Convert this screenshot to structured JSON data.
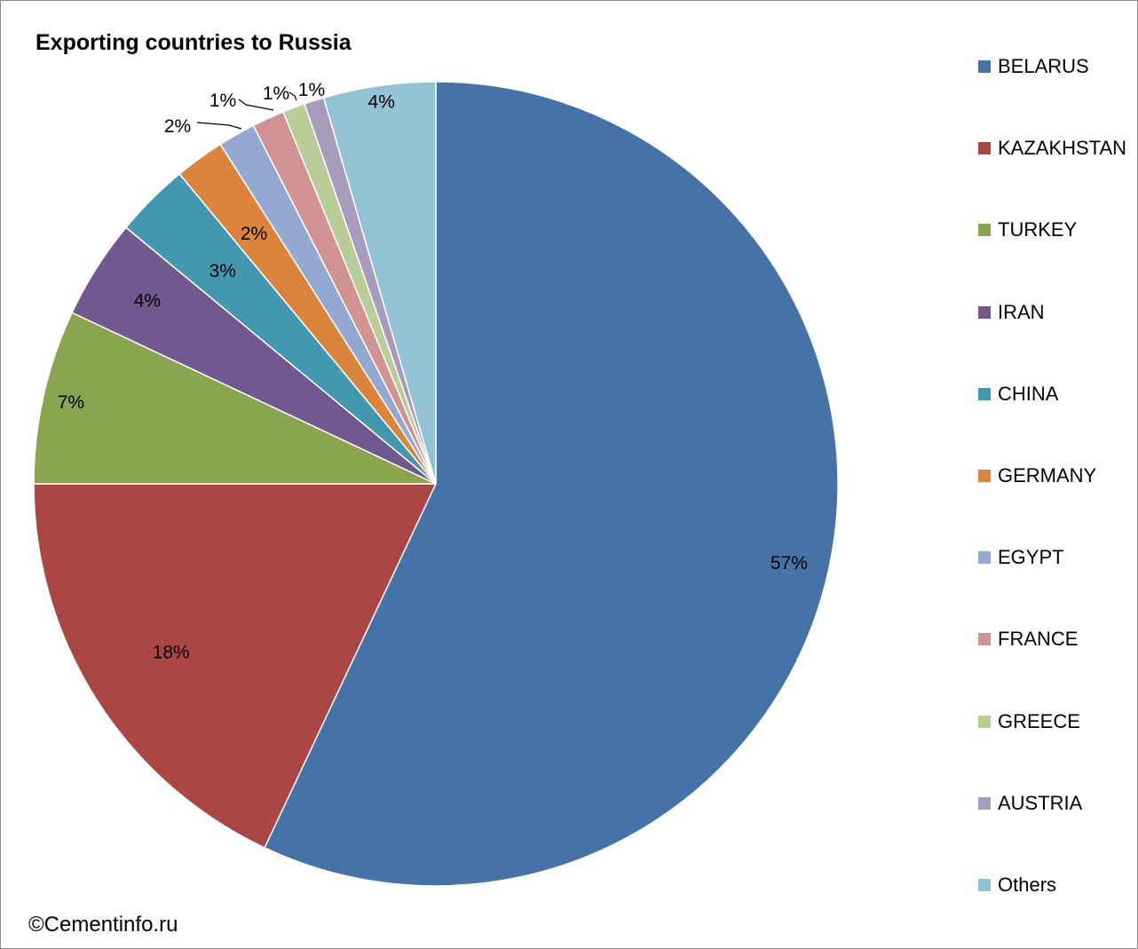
{
  "chart_data": {
    "type": "pie",
    "title": "Exporting countries to Russia",
    "credit": "©Cementinfo.ru",
    "legend_position": "right",
    "slices": [
      {
        "name": "BELARUS",
        "value": 57,
        "label": "57%",
        "color": "#4572a7"
      },
      {
        "name": "KAZAKHSTAN",
        "value": 18,
        "label": "18%",
        "color": "#aa4643"
      },
      {
        "name": "TURKEY",
        "value": 7,
        "label": "7%",
        "color": "#89a54e"
      },
      {
        "name": "IRAN",
        "value": 4,
        "label": "4%",
        "color": "#71588f"
      },
      {
        "name": "CHINA",
        "value": 3,
        "label": "3%",
        "color": "#4198af"
      },
      {
        "name": "GERMANY",
        "value": 2,
        "label": "2%",
        "color": "#db843d"
      },
      {
        "name": "EGYPT",
        "value": 1.5,
        "label": "2%",
        "color": "#93a9cf"
      },
      {
        "name": "FRANCE",
        "value": 1.3,
        "label": "1%",
        "color": "#d19392"
      },
      {
        "name": "GREECE",
        "value": 0.9,
        "label": "1%",
        "color": "#b9cd96"
      },
      {
        "name": "AUSTRIA",
        "value": 0.8,
        "label": "1%",
        "color": "#a99bbd"
      },
      {
        "name": "Others",
        "value": 4.5,
        "label": "4%",
        "color": "#92c3d5"
      }
    ]
  }
}
